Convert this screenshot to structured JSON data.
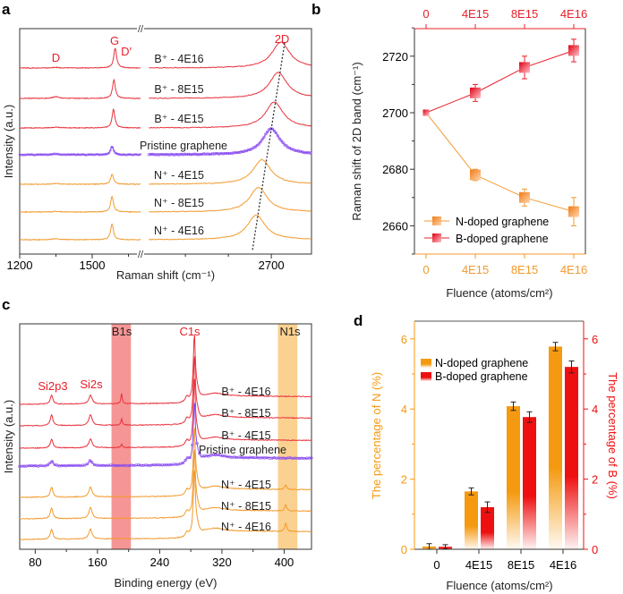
{
  "panels": {
    "a": "a",
    "b": "b",
    "c": "c",
    "d": "d"
  },
  "colors": {
    "boron": "#e8323c",
    "nitrogen": "#f29a2e",
    "pristine": "#8a4cf0",
    "b1s_band": "#f47a7a",
    "n1s_band": "#f9c97c"
  },
  "chart_data": [
    {
      "id": "a",
      "type": "line",
      "title": "",
      "xlabel": "Raman shift (cm⁻¹)",
      "ylabel": "Intensity (a.u.)",
      "xlim_segments": [
        [
          1200,
          1700
        ],
        [
          2406,
          2794
        ]
      ],
      "xticks": [
        "1200",
        "1500",
        "2700"
      ],
      "xtick_values": [
        1200,
        1500,
        2700
      ],
      "peak_labels": [
        "D",
        "G",
        "D′",
        "2D"
      ],
      "series": [
        {
          "name": "B⁺ - 4E16",
          "dopant": "B",
          "G": 1595,
          "G_int": 0.7,
          "D_int": 0.02,
          "2D": 2722,
          "2D_int": 1.0
        },
        {
          "name": "B⁺ - 8E15",
          "dopant": "B",
          "G": 1590,
          "G_int": 0.65,
          "D_int": 0.06,
          "2D": 2716,
          "2D_int": 1.0
        },
        {
          "name": "B⁺ - 4E15",
          "dopant": "B",
          "G": 1588,
          "G_int": 0.65,
          "D_int": 0.03,
          "2D": 2707,
          "2D_int": 1.0
        },
        {
          "name": "Pristine graphene",
          "dopant": "none",
          "G": 1582,
          "G_int": 0.3,
          "D_int": 0.03,
          "2D": 2700,
          "2D_int": 1.0
        },
        {
          "name": "N⁺ - 4E15",
          "dopant": "N",
          "G": 1582,
          "G_int": 0.35,
          "D_int": 0.03,
          "2D": 2678,
          "2D_int": 0.95
        },
        {
          "name": "N⁺ - 8E15",
          "dopant": "N",
          "G": 1582,
          "G_int": 0.55,
          "D_int": 0.02,
          "2D": 2670,
          "2D_int": 0.95
        },
        {
          "name": "N⁺ - 4E16",
          "dopant": "N",
          "G": 1582,
          "G_int": 0.55,
          "D_int": 0.04,
          "2D": 2665,
          "2D_int": 0.95
        }
      ]
    },
    {
      "id": "b",
      "type": "line",
      "xlabel": "Fluence (atoms/cm²)",
      "ylabel": "Raman shift of 2D band (cm⁻¹)",
      "categories": [
        "0",
        "4E15",
        "8E15",
        "4E16"
      ],
      "ylim": [
        2650,
        2730
      ],
      "yticks": [
        2660,
        2680,
        2700,
        2720
      ],
      "legend_position": "bottom-left",
      "series": [
        {
          "name": "N-doped graphene",
          "color": "#f29a2e",
          "values": [
            2700,
            2678,
            2670,
            2665
          ],
          "errors": [
            0,
            2,
            3,
            5
          ]
        },
        {
          "name": "B-doped graphene",
          "color": "#e8202a",
          "values": [
            2700,
            2707,
            2716,
            2722
          ],
          "errors": [
            0,
            3,
            4,
            4
          ]
        }
      ]
    },
    {
      "id": "c",
      "type": "line",
      "xlabel": "Binding energy (eV)",
      "ylabel": "Intensity (a.u.)",
      "xlim": [
        60,
        436
      ],
      "xticks": [
        80,
        160,
        240,
        320,
        400
      ],
      "peak_labels": [
        "Si2p3",
        "Si2s",
        "B1s",
        "C1s",
        "N1s"
      ],
      "bands": [
        {
          "name": "B1s",
          "range": [
            178,
            203
          ]
        },
        {
          "name": "N1s",
          "range": [
            392,
            417
          ]
        }
      ],
      "series": [
        {
          "name": "B⁺ - 4E16",
          "dopant": "B",
          "C1s": 1.0,
          "Si": 0.25,
          "B1s": 0.2,
          "N1s": 0
        },
        {
          "name": "B⁺ - 8E15",
          "dopant": "B",
          "C1s": 1.0,
          "Si": 0.3,
          "B1s": 0.12,
          "N1s": 0
        },
        {
          "name": "B⁺ - 4E15",
          "dopant": "B",
          "C1s": 1.0,
          "Si": 0.25,
          "B1s": 0.06,
          "N1s": 0
        },
        {
          "name": "Pristine graphene",
          "dopant": "none",
          "C1s": 0.9,
          "Si": 0.15,
          "B1s": 0,
          "N1s": 0
        },
        {
          "name": "N⁺ - 4E15",
          "dopant": "N",
          "C1s": 1.0,
          "Si": 0.28,
          "B1s": 0,
          "N1s": 0.08
        },
        {
          "name": "N⁺ - 8E15",
          "dopant": "N",
          "C1s": 1.0,
          "Si": 0.3,
          "B1s": 0,
          "N1s": 0.12
        },
        {
          "name": "N⁺ - 4E16",
          "dopant": "N",
          "C1s": 1.0,
          "Si": 0.28,
          "B1s": 0,
          "N1s": 0.16
        }
      ]
    },
    {
      "id": "d",
      "type": "bar",
      "xlabel": "Fluence (atoms/cm²)",
      "ylabel": "The percentage of N (%)",
      "ylabel_right": "The percentage of B (%)",
      "categories": [
        "0",
        "4E15",
        "8E15",
        "4E16"
      ],
      "ylim": [
        0,
        6.5
      ],
      "yticks": [
        0,
        2,
        4,
        6
      ],
      "legend_position": "top-left",
      "series": [
        {
          "name": "N-doped graphene",
          "color": "#f59a10",
          "values": [
            0.08,
            1.65,
            4.08,
            5.78
          ],
          "errors": [
            0.08,
            0.1,
            0.12,
            0.12
          ]
        },
        {
          "name": "B-doped graphene",
          "color": "#ee1010",
          "values": [
            0.07,
            1.2,
            3.77,
            5.2
          ],
          "errors": [
            0.06,
            0.15,
            0.15,
            0.17
          ]
        }
      ]
    }
  ]
}
